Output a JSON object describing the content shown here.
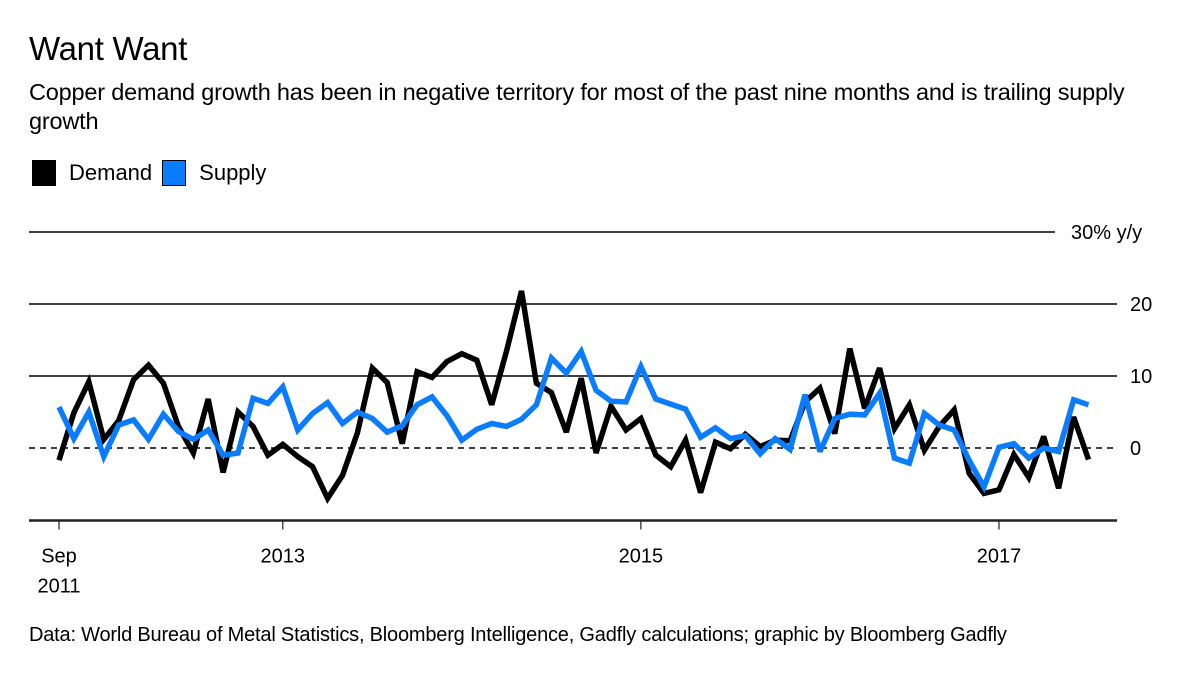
{
  "title": "Want Want",
  "subtitle": "Copper demand growth has been in negative territory for most of the past nine months and is trailing supply growth",
  "legend": [
    {
      "label": "Demand",
      "color": "#000000"
    },
    {
      "label": "Supply",
      "color": "#0a7cff"
    }
  ],
  "source": "Data: World Bureau of Metal Statistics, Bloomberg Intelligence, Gadfly calculations; graphic by Bloomberg Gadfly",
  "chart_data": {
    "type": "line",
    "title": "Want Want",
    "xlabel": "",
    "ylabel": "% y/y",
    "ylim": [
      -10,
      30
    ],
    "y_ticks": [
      {
        "value": 30,
        "label": "30% y/y"
      },
      {
        "value": 20,
        "label": "20"
      },
      {
        "value": 10,
        "label": "10"
      },
      {
        "value": 0,
        "label": "0"
      }
    ],
    "zero_line": "dashed",
    "grid": true,
    "legend_position": "top-left",
    "x_start": "Sep 2011",
    "x_frequency": "monthly",
    "x_ticks": [
      {
        "index": 0,
        "label": [
          "Sep",
          "2011"
        ]
      },
      {
        "index": 15,
        "label": [
          "2013"
        ]
      },
      {
        "index": 39,
        "label": [
          "2015"
        ]
      },
      {
        "index": 63,
        "label": [
          "2017"
        ]
      }
    ],
    "series": [
      {
        "name": "Demand",
        "color": "#000000",
        "values": [
          -1.7,
          4.9,
          9.2,
          1.2,
          3.8,
          9.5,
          11.5,
          9.0,
          3.0,
          -0.7,
          6.8,
          -3.4,
          5.0,
          3.0,
          -1.0,
          0.5,
          -1.2,
          -2.6,
          -7.0,
          -3.8,
          2.1,
          11.1,
          9.1,
          0.6,
          10.6,
          9.8,
          12.0,
          13.1,
          12.2,
          6.0,
          13.5,
          21.8,
          9.0,
          7.7,
          2.2,
          9.7,
          -0.7,
          5.8,
          2.5,
          4.1,
          -1.0,
          -2.6,
          1.1,
          -6.2,
          0.8,
          -0.1,
          1.9,
          0.2,
          1.1,
          1.0,
          6.4,
          8.3,
          2.0,
          13.8,
          5.5,
          11.1,
          2.7,
          6.0,
          -0.3,
          3.0,
          5.3,
          -3.5,
          -6.3,
          -5.8,
          -0.9,
          -4.1,
          1.6,
          -5.6,
          4.3,
          -1.6
        ]
      },
      {
        "name": "Supply",
        "color": "#0a7cff",
        "values": [
          5.7,
          1.3,
          5.0,
          -1.2,
          3.2,
          3.9,
          1.2,
          4.7,
          2.3,
          1.2,
          2.5,
          -1.0,
          -0.7,
          6.9,
          6.2,
          8.5,
          2.5,
          4.8,
          6.3,
          3.4,
          5.0,
          4.1,
          2.2,
          3.1,
          6.0,
          7.1,
          4.5,
          1.1,
          2.6,
          3.4,
          3.0,
          4.0,
          6.0,
          12.5,
          10.4,
          13.4,
          8.0,
          6.5,
          6.4,
          11.3,
          6.8,
          6.1,
          5.4,
          1.5,
          2.8,
          1.3,
          1.7,
          -0.8,
          1.3,
          -0.2,
          7.4,
          -0.5,
          4.1,
          4.7,
          4.6,
          7.6,
          -1.4,
          -2.1,
          4.8,
          3.2,
          2.5,
          -1.7,
          -5.4,
          0.1,
          0.6,
          -1.4,
          0.0,
          -0.5,
          6.7,
          6.0
        ]
      }
    ]
  }
}
